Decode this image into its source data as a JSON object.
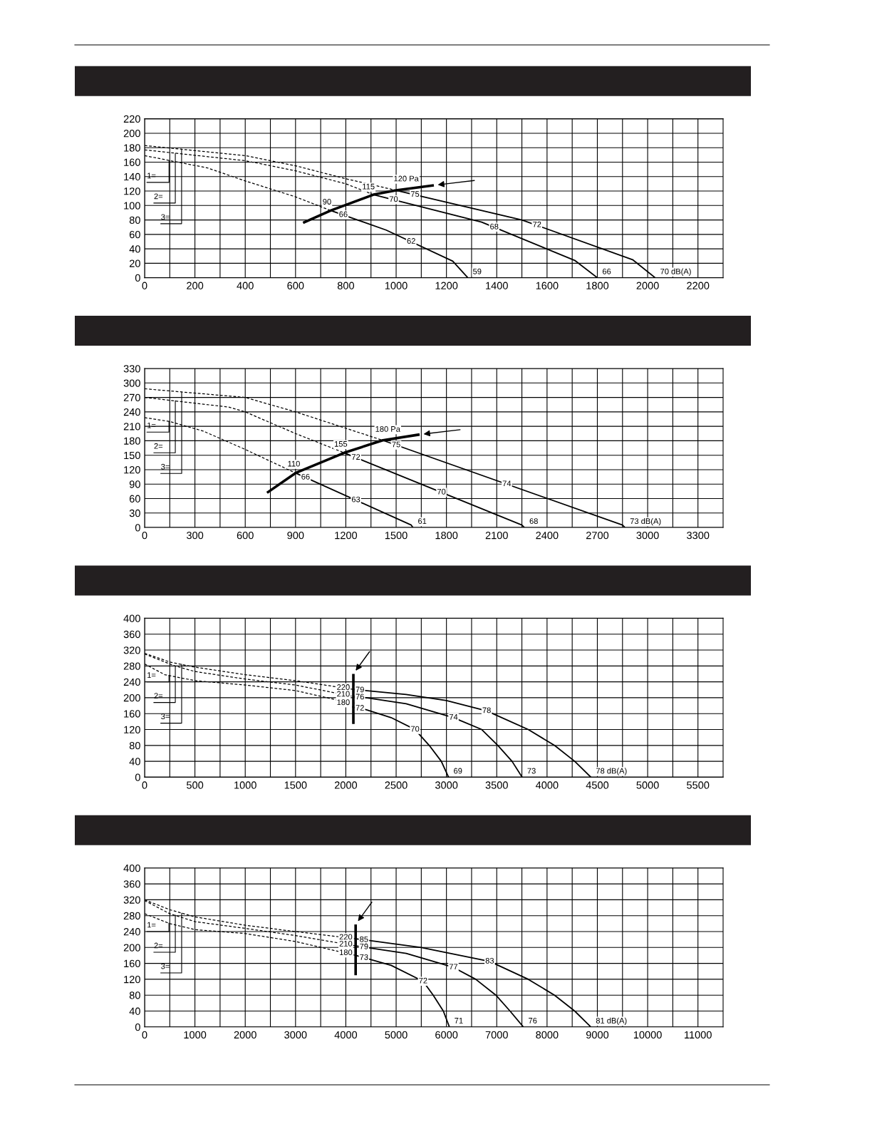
{
  "chart_data": [
    {
      "type": "line",
      "xlim": [
        0,
        2300
      ],
      "ylim": [
        0,
        220
      ],
      "grid": true,
      "xticks": [
        0,
        {
          "value": 100,
          "label": null
        },
        200,
        {
          "value": 300,
          "label": null
        },
        400,
        {
          "value": 500,
          "label": null
        },
        600,
        {
          "value": 700,
          "label": null
        },
        800,
        {
          "value": 900,
          "label": null
        },
        1000,
        {
          "value": 1100,
          "label": null
        },
        1200,
        {
          "value": 1300,
          "label": null
        },
        1400,
        {
          "value": 1500,
          "label": null
        },
        1600,
        {
          "value": 1700,
          "label": null
        },
        1800,
        {
          "value": 1900,
          "label": null
        },
        2000,
        {
          "value": 2100,
          "label": null
        },
        2200
      ],
      "yticks": [
        0,
        20,
        40,
        60,
        80,
        100,
        120,
        140,
        160,
        180,
        200,
        220
      ],
      "series": [
        {
          "color": "#000000",
          "line_style": "dashed",
          "x": [
            0,
            250,
            400,
            600,
            740
          ],
          "values": [
            169,
            152,
            134,
            112,
            93
          ]
        },
        {
          "color": "#000000",
          "line_style": "dashed",
          "x": [
            0,
            400,
            600,
            800,
            910
          ],
          "values": [
            177,
            162,
            148,
            130,
            115
          ]
        },
        {
          "color": "#000000",
          "line_style": "dashed",
          "x": [
            0,
            400,
            600,
            800,
            1000
          ],
          "values": [
            183,
            169,
            155,
            137,
            121
          ]
        },
        {
          "color": "#000000",
          "line_style": "solid",
          "x": [
            1000,
            1500,
            1940,
            2030
          ],
          "values": [
            121,
            80,
            25,
            0
          ]
        },
        {
          "color": "#000000",
          "line_style": "solid",
          "x": [
            910,
            1340,
            1710,
            1800
          ],
          "values": [
            115,
            77,
            24,
            0
          ]
        },
        {
          "color": "#000000",
          "line_style": "solid",
          "x": [
            740,
            960,
            1225,
            1285
          ],
          "values": [
            93,
            66,
            23,
            0
          ]
        },
        {
          "color": "#000000",
          "line_style": "solid",
          "x": [
            630,
            740,
            910,
            1000,
            1150
          ],
          "values": [
            76,
            93,
            115,
            121,
            128
          ]
        }
      ],
      "annotations": [
        {
          "text": "1=",
          "x": 97,
          "y": 162
        },
        {
          "text": "2=",
          "x": 122,
          "y": 172
        },
        {
          "text": "3=",
          "x": 147,
          "y": 178
        },
        {
          "text": "120 Pa",
          "x": 1040,
          "y": 123
        },
        {
          "text": "115",
          "x": 890,
          "y": 112
        },
        {
          "text": "90",
          "x": 725,
          "y": 91
        },
        {
          "text": "75",
          "x": 1075,
          "y": 115
        },
        {
          "text": "70",
          "x": 990,
          "y": 108
        },
        {
          "text": "66",
          "x": 790,
          "y": 87
        },
        {
          "text": "72",
          "x": 1560,
          "y": 73
        },
        {
          "text": "68",
          "x": 1390,
          "y": 70
        },
        {
          "text": "62",
          "x": 1060,
          "y": 50
        },
        {
          "text": "70 dB(A)",
          "x": 2030,
          "y": 0
        },
        {
          "text": "66",
          "x": 1800,
          "y": 0
        },
        {
          "text": "59",
          "x": 1285,
          "y": 0
        }
      ]
    },
    {
      "type": "line",
      "xlim": [
        0,
        3450
      ],
      "ylim": [
        0,
        330
      ],
      "grid": true,
      "xticks": [
        0,
        {
          "value": 150,
          "label": null
        },
        300,
        {
          "value": 450,
          "label": null
        },
        600,
        {
          "value": 750,
          "label": null
        },
        900,
        {
          "value": 1050,
          "label": null
        },
        1200,
        {
          "value": 1350,
          "label": null
        },
        1500,
        {
          "value": 1650,
          "label": null
        },
        1800,
        {
          "value": 1950,
          "label": null
        },
        2100,
        {
          "value": 2250,
          "label": null
        },
        2400,
        {
          "value": 2550,
          "label": null
        },
        2700,
        {
          "value": 2850,
          "label": null
        },
        3000,
        {
          "value": 3150,
          "label": null
        },
        3300
      ],
      "yticks": [
        0,
        30,
        60,
        90,
        120,
        150,
        180,
        210,
        240,
        270,
        300,
        330
      ],
      "series": [
        {
          "color": "#000000",
          "line_style": "dashed",
          "x": [
            0,
            150,
            350,
            600,
            900
          ],
          "values": [
            228,
            220,
            200,
            162,
            113
          ]
        },
        {
          "color": "#000000",
          "line_style": "dashed",
          "x": [
            0,
            500,
            600,
            900,
            1190
          ],
          "values": [
            270,
            250,
            240,
            195,
            155
          ]
        },
        {
          "color": "#000000",
          "line_style": "dashed",
          "x": [
            0,
            600,
            900,
            1420
          ],
          "values": [
            288,
            270,
            240,
            181
          ]
        },
        {
          "color": "#000000",
          "line_style": "solid",
          "x": [
            1420,
            2850,
            2865
          ],
          "values": [
            181,
            5,
            0
          ]
        },
        {
          "color": "#000000",
          "line_style": "solid",
          "x": [
            1190,
            2250,
            2265
          ],
          "values": [
            155,
            5,
            0
          ]
        },
        {
          "color": "#000000",
          "line_style": "solid",
          "x": [
            900,
            1590,
            1600
          ],
          "values": [
            113,
            5,
            0
          ]
        },
        {
          "color": "#000000",
          "line_style": "solid",
          "x": [
            730,
            900,
            1190,
            1420,
            1640
          ],
          "values": [
            72,
            113,
            155,
            181,
            193
          ]
        }
      ],
      "annotations": [
        {
          "text": "1=",
          "x": 145,
          "y": 220
        },
        {
          "text": "2=",
          "x": 183,
          "y": 263
        },
        {
          "text": "3=",
          "x": 221,
          "y": 281
        },
        {
          "text": "180 Pa",
          "x": 1450,
          "y": 183
        },
        {
          "text": "155",
          "x": 1170,
          "y": 152
        },
        {
          "text": "110",
          "x": 890,
          "y": 111
        },
        {
          "text": "75",
          "x": 1500,
          "y": 171
        },
        {
          "text": "72",
          "x": 1260,
          "y": 145
        },
        {
          "text": "66",
          "x": 960,
          "y": 104
        },
        {
          "text": "74",
          "x": 2160,
          "y": 90
        },
        {
          "text": "70",
          "x": 1770,
          "y": 73
        },
        {
          "text": "63",
          "x": 1260,
          "y": 57
        },
        {
          "text": "73 dB(A)",
          "x": 2865,
          "y": 0
        },
        {
          "text": "68",
          "x": 2265,
          "y": 0
        },
        {
          "text": "61",
          "x": 1600,
          "y": 0
        }
      ]
    },
    {
      "type": "line",
      "xlim": [
        0,
        5750
      ],
      "ylim": [
        0,
        400
      ],
      "grid": true,
      "xticks": [
        0,
        {
          "value": 250,
          "label": null
        },
        500,
        {
          "value": 750,
          "label": null
        },
        1000,
        {
          "value": 1250,
          "label": null
        },
        1500,
        {
          "value": 1750,
          "label": null
        },
        2000,
        {
          "value": 2250,
          "label": null
        },
        2500,
        {
          "value": 2750,
          "label": null
        },
        3000,
        {
          "value": 3250,
          "label": null
        },
        3500,
        {
          "value": 3750,
          "label": null
        },
        4000,
        {
          "value": 4250,
          "label": null
        },
        4500,
        {
          "value": 4750,
          "label": null
        },
        5000,
        {
          "value": 5250,
          "label": null
        },
        5500
      ],
      "yticks": [
        0,
        40,
        80,
        120,
        160,
        200,
        240,
        280,
        320,
        360,
        400
      ],
      "series": [
        {
          "color": "#000000",
          "line_style": "dashed",
          "x": [
            0,
            200,
            500,
            1000,
            1500,
            1900,
            2075
          ],
          "values": [
            285,
            258,
            243,
            232,
            218,
            195,
            176
          ]
        },
        {
          "color": "#000000",
          "line_style": "dashed",
          "x": [
            0,
            300,
            500,
            1000,
            1500,
            2075
          ],
          "values": [
            310,
            280,
            266,
            247,
            232,
            203
          ]
        },
        {
          "color": "#000000",
          "line_style": "dashed",
          "x": [
            0,
            250,
            500,
            1000,
            1500,
            2075
          ],
          "values": [
            312,
            290,
            277,
            258,
            243,
            221
          ]
        },
        {
          "color": "#000000",
          "line_style": "solid",
          "x": [
            2075,
            2600,
            3000,
            3400,
            3813,
            4074,
            4275,
            4436
          ],
          "values": [
            221,
            208,
            193,
            167,
            120,
            80,
            40,
            0
          ]
        },
        {
          "color": "#000000",
          "line_style": "solid",
          "x": [
            2075,
            2200,
            2600,
            3070,
            3351,
            3511,
            3652,
            3753
          ],
          "values": [
            203,
            200,
            185,
            150,
            120,
            80,
            40,
            0
          ]
        },
        {
          "color": "#000000",
          "line_style": "solid",
          "x": [
            2075,
            2200,
            2450,
            2688,
            2829,
            2949,
            3021
          ],
          "values": [
            176,
            170,
            150,
            120,
            80,
            40,
            0
          ]
        },
        {
          "color": "#000000",
          "line_style": "solid",
          "x": [
            2075,
            2075
          ],
          "values": [
            134,
            260
          ]
        }
      ],
      "annotations": [
        {
          "text": "1=",
          "x": 242,
          "y": 256
        },
        {
          "text": "2=",
          "x": 305,
          "y": 280
        },
        {
          "text": "3=",
          "x": 368,
          "y": 284
        },
        {
          "text": "220",
          "x": 1975,
          "y": 225
        },
        {
          "text": "210",
          "x": 1975,
          "y": 208
        },
        {
          "text": "180",
          "x": 1975,
          "y": 187
        },
        {
          "text": "79",
          "x": 2140,
          "y": 219
        },
        {
          "text": "76",
          "x": 2140,
          "y": 201
        },
        {
          "text": "72",
          "x": 2140,
          "y": 173
        },
        {
          "text": "78",
          "x": 3400,
          "y": 167
        },
        {
          "text": "74",
          "x": 3070,
          "y": 150
        },
        {
          "text": "70",
          "x": 2688,
          "y": 120
        },
        {
          "text": "78 dB(A)",
          "x": 4436,
          "y": 0
        },
        {
          "text": "73",
          "x": 3753,
          "y": 0
        },
        {
          "text": "69",
          "x": 3021,
          "y": 0
        }
      ]
    },
    {
      "type": "line",
      "xlim": [
        0,
        11500
      ],
      "ylim": [
        0,
        400
      ],
      "grid": true,
      "xticks": [
        0,
        {
          "value": 500,
          "label": null
        },
        1000,
        {
          "value": 1500,
          "label": null
        },
        2000,
        {
          "value": 2500,
          "label": null
        },
        3000,
        {
          "value": 3500,
          "label": null
        },
        4000,
        {
          "value": 4500,
          "label": null
        },
        5000,
        {
          "value": 5500,
          "label": null
        },
        6000,
        {
          "value": 6500,
          "label": null
        },
        7000,
        {
          "value": 7500,
          "label": null
        },
        8000,
        {
          "value": 8500,
          "label": null
        },
        9000,
        {
          "value": 9500,
          "label": null
        },
        10000,
        {
          "value": 10500,
          "label": null
        },
        11000
      ],
      "yticks": [
        0,
        40,
        80,
        120,
        160,
        200,
        240,
        280,
        320,
        360,
        400
      ],
      "series": [
        {
          "color": "#000000",
          "line_style": "dashed",
          "x": [
            0,
            500,
            1000,
            2000,
            3000,
            4195
          ],
          "values": [
            285,
            260,
            245,
            235,
            215,
            180
          ]
        },
        {
          "color": "#000000",
          "line_style": "dashed",
          "x": [
            0,
            500,
            1000,
            2000,
            3000,
            4195
          ],
          "values": [
            318,
            285,
            265,
            248,
            230,
            204
          ]
        },
        {
          "color": "#000000",
          "line_style": "dashed",
          "x": [
            0,
            500,
            1000,
            2000,
            3000,
            4195
          ],
          "values": [
            320,
            295,
            277,
            256,
            240,
            222
          ]
        },
        {
          "color": "#000000",
          "line_style": "solid",
          "x": [
            4195,
            5500,
            6860,
            7625,
            8148,
            8550,
            8871
          ],
          "values": [
            222,
            200,
            165,
            120,
            80,
            40,
            0
          ]
        },
        {
          "color": "#000000",
          "line_style": "solid",
          "x": [
            4195,
            5200,
            6139,
            6581,
            6983,
            7264,
            7529
          ],
          "values": [
            204,
            185,
            150,
            120,
            80,
            40,
            0
          ]
        },
        {
          "color": "#000000",
          "line_style": "solid",
          "x": [
            4195,
            4400,
            4900,
            5536,
            5737,
            5938,
            6059
          ],
          "values": [
            180,
            173,
            155,
            115,
            80,
            40,
            0
          ]
        },
        {
          "color": "#000000",
          "line_style": "solid",
          "x": [
            4195,
            4195
          ],
          "values": [
            130,
            258
          ]
        }
      ],
      "annotations": [
        {
          "text": "1=",
          "x": 483,
          "y": 261
        },
        {
          "text": "2=",
          "x": 610,
          "y": 281
        },
        {
          "text": "3=",
          "x": 736,
          "y": 286
        },
        {
          "text": "220",
          "x": 4000,
          "y": 225
        },
        {
          "text": "210",
          "x": 4000,
          "y": 208
        },
        {
          "text": "180",
          "x": 4000,
          "y": 186
        },
        {
          "text": "85",
          "x": 4360,
          "y": 219
        },
        {
          "text": "79",
          "x": 4360,
          "y": 201
        },
        {
          "text": "73",
          "x": 4360,
          "y": 174
        },
        {
          "text": "83",
          "x": 6860,
          "y": 165
        },
        {
          "text": "77",
          "x": 6139,
          "y": 150
        },
        {
          "text": "72",
          "x": 5536,
          "y": 115
        },
        {
          "text": "81 dB(A)",
          "x": 8871,
          "y": 0
        },
        {
          "text": "76",
          "x": 7529,
          "y": 0
        },
        {
          "text": "71",
          "x": 6059,
          "y": 0
        }
      ]
    }
  ]
}
